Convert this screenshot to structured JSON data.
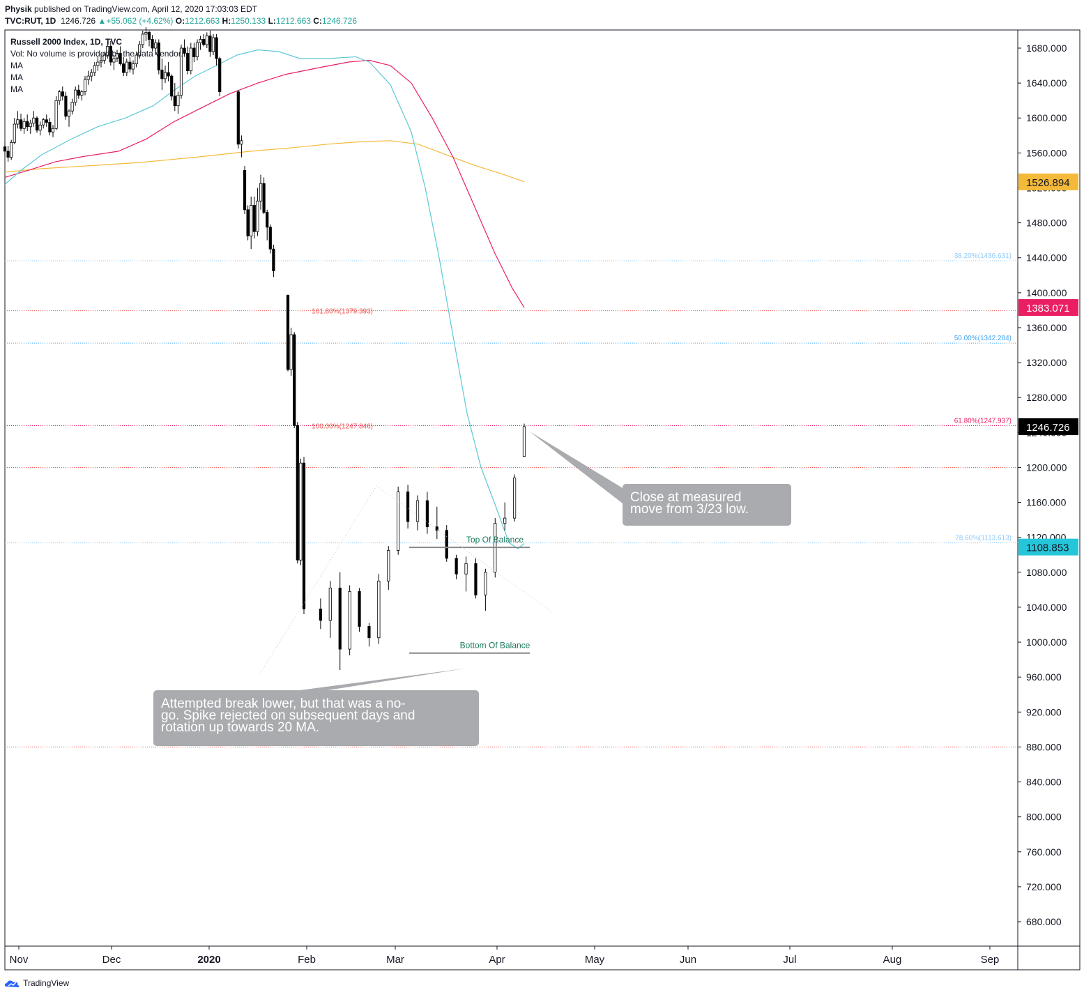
{
  "header": {
    "author": "Physik",
    "published_text": "published on TradingView.com, April 12, 2020 17:03:03 EDT",
    "symbol_line": "TVC:RUT, 1D",
    "last": "1246.726",
    "change_arrow": "▲",
    "change": "+55.062 (+4.62%)",
    "o_label": "O:",
    "o_val": "1212.663",
    "h_label": "H:",
    "h_val": "1250.133",
    "l_label": "L:",
    "l_val": "1212.663",
    "c_label": "C:",
    "c_val": "1246.726"
  },
  "legend": {
    "title": "Russell 2000 Index, 1D, TVC",
    "vol": "Vol: No volume is provided by the data vendor.",
    "ma1": "MA",
    "ma2": "MA",
    "ma3": "MA"
  },
  "branding": {
    "label": "TradingView",
    "icon": "tradingview-logo-icon"
  },
  "colors": {
    "ma20": "#5bc8d6",
    "ma50": "#e91e63",
    "ma200": "#f5b93a",
    "fib_red": "#ef5350",
    "fib_blue": "#42a5f5",
    "fib_lightblue": "#90caf9",
    "candle_down": "#000000",
    "candle_up": "#ffffff",
    "callout_bg": "#a9abae",
    "balance_text": "#1b7a5e"
  },
  "chart_data": {
    "type": "candlestick",
    "title": "Russell 2000 Index, 1D, TVC",
    "ylim": [
      652,
      1704
    ],
    "y_ticks": [
      "680.000",
      "720.000",
      "760.000",
      "800.000",
      "840.000",
      "880.000",
      "920.000",
      "960.000",
      "1000.000",
      "1040.000",
      "1080.000",
      "1120.000",
      "1160.000",
      "1200.000",
      "1240.000",
      "1280.000",
      "1320.000",
      "1360.000",
      "1400.000",
      "1440.000",
      "1480.000",
      "1520.000",
      "1560.000",
      "1600.000",
      "1640.000",
      "1680.000"
    ],
    "x_labels": [
      {
        "label": "Nov",
        "bold": false
      },
      {
        "label": "Dec",
        "bold": false
      },
      {
        "label": "2020",
        "bold": true
      },
      {
        "label": "Feb",
        "bold": false
      },
      {
        "label": "Mar",
        "bold": false
      },
      {
        "label": "Apr",
        "bold": false
      },
      {
        "label": "May",
        "bold": false
      },
      {
        "label": "Jun",
        "bold": false
      },
      {
        "label": "Jul",
        "bold": false
      },
      {
        "label": "Aug",
        "bold": false
      },
      {
        "label": "Sep",
        "bold": false
      }
    ],
    "price_badges": [
      {
        "label": "1526.894",
        "value": 1526.894,
        "bg": "#f5b93a",
        "fg": "#131722"
      },
      {
        "label": "1383.071",
        "value": 1383.071,
        "bg": "#e91e63",
        "fg": "#ffffff"
      },
      {
        "label": "1246.726",
        "value": 1246.726,
        "bg": "#000000",
        "fg": "#ffffff"
      },
      {
        "label": "1108.853",
        "value": 1108.853,
        "bg": "#26c6da",
        "fg": "#131722"
      }
    ],
    "fib_levels": [
      {
        "label": "38.20%(1436.631)",
        "value": 1436.631,
        "side": "right",
        "color": "#90caf9"
      },
      {
        "label": "161.80%(1379.393)",
        "value": 1379.393,
        "side": "mid",
        "color": "#ef5350"
      },
      {
        "label": "50.00%(1342.284)",
        "value": 1342.284,
        "side": "right",
        "color": "#42a5f5"
      },
      {
        "label": "100.00%(1247.846)",
        "value": 1247.846,
        "side": "mid",
        "color": "#ef5350"
      },
      {
        "label": "61.80%(1247.937)",
        "value": 1247.937,
        "side": "right",
        "color": "#e91e63"
      },
      {
        "label": "",
        "value": 1200.0,
        "side": "none",
        "color": "#ef5350"
      },
      {
        "label": "78.60%(1113.613)",
        "value": 1113.613,
        "side": "right",
        "color": "#90caf9"
      },
      {
        "label": "",
        "value": 880.0,
        "side": "none",
        "color": "#ef5350"
      }
    ],
    "balance_lines": [
      {
        "label": "Top Of Balance",
        "value": 1108.5,
        "i0": 118,
        "i1": 143
      },
      {
        "label": "Bottom Of Balance",
        "value": 987.5,
        "i0": 118,
        "i1": 143
      }
    ],
    "callouts": [
      {
        "text": [
          "Close at measured",
          "move from 3/23 low."
        ],
        "pointer": 1241
      },
      {
        "text": [
          "Attempted break lower, but that was a no-",
          "go. Spike rejected on subsequent days and",
          "rotation up towards 20 MA."
        ],
        "pointer": 970
      }
    ],
    "candles": [
      [
        1567,
        1572,
        1556,
        1562
      ],
      [
        1562,
        1568,
        1550,
        1555
      ],
      [
        1555,
        1575,
        1552,
        1572
      ],
      [
        1572,
        1600,
        1570,
        1593
      ],
      [
        1593,
        1608,
        1588,
        1598
      ],
      [
        1598,
        1605,
        1585,
        1588
      ],
      [
        1588,
        1600,
        1582,
        1596
      ],
      [
        1596,
        1604,
        1585,
        1590
      ],
      [
        1590,
        1598,
        1582,
        1594
      ],
      [
        1594,
        1608,
        1590,
        1600
      ],
      [
        1600,
        1602,
        1583,
        1586
      ],
      [
        1586,
        1596,
        1580,
        1592
      ],
      [
        1592,
        1600,
        1588,
        1598
      ],
      [
        1598,
        1604,
        1590,
        1595
      ],
      [
        1595,
        1600,
        1580,
        1584
      ],
      [
        1584,
        1592,
        1578,
        1588
      ],
      [
        1588,
        1625,
        1586,
        1620
      ],
      [
        1620,
        1632,
        1615,
        1630
      ],
      [
        1630,
        1636,
        1620,
        1625
      ],
      [
        1625,
        1630,
        1598,
        1602
      ],
      [
        1602,
        1610,
        1590,
        1608
      ],
      [
        1608,
        1622,
        1604,
        1618
      ],
      [
        1618,
        1636,
        1614,
        1632
      ],
      [
        1632,
        1638,
        1622,
        1626
      ],
      [
        1626,
        1632,
        1620,
        1630
      ],
      [
        1630,
        1648,
        1626,
        1644
      ],
      [
        1644,
        1654,
        1638,
        1648
      ],
      [
        1648,
        1656,
        1642,
        1652
      ],
      [
        1652,
        1664,
        1648,
        1660
      ],
      [
        1660,
        1670,
        1654,
        1664
      ],
      [
        1664,
        1672,
        1658,
        1666
      ],
      [
        1666,
        1676,
        1662,
        1672
      ],
      [
        1672,
        1686,
        1668,
        1682
      ],
      [
        1682,
        1688,
        1660,
        1664
      ],
      [
        1664,
        1672,
        1655,
        1668
      ],
      [
        1668,
        1678,
        1664,
        1674
      ],
      [
        1674,
        1682,
        1660,
        1662
      ],
      [
        1662,
        1670,
        1648,
        1652
      ],
      [
        1652,
        1668,
        1648,
        1664
      ],
      [
        1664,
        1670,
        1652,
        1656
      ],
      [
        1656,
        1666,
        1650,
        1662
      ],
      [
        1662,
        1676,
        1658,
        1672
      ],
      [
        1672,
        1688,
        1668,
        1684
      ],
      [
        1684,
        1700,
        1680,
        1696
      ],
      [
        1696,
        1704,
        1688,
        1698
      ],
      [
        1698,
        1700,
        1682,
        1690
      ],
      [
        1690,
        1695,
        1676,
        1680
      ],
      [
        1680,
        1690,
        1672,
        1686
      ],
      [
        1686,
        1690,
        1650,
        1655
      ],
      [
        1655,
        1668,
        1632,
        1645
      ],
      [
        1645,
        1660,
        1640,
        1652
      ],
      [
        1652,
        1664,
        1642,
        1648
      ],
      [
        1648,
        1650,
        1620,
        1625
      ],
      [
        1625,
        1640,
        1608,
        1614
      ],
      [
        1614,
        1630,
        1605,
        1626
      ],
      [
        1626,
        1684,
        1622,
        1680
      ],
      [
        1680,
        1690,
        1670,
        1674
      ],
      [
        1674,
        1682,
        1650,
        1654
      ],
      [
        1654,
        1686,
        1650,
        1680
      ],
      [
        1680,
        1686,
        1664,
        1670
      ],
      [
        1670,
        1690,
        1666,
        1686
      ],
      [
        1686,
        1694,
        1678,
        1690
      ],
      [
        1690,
        1696,
        1682,
        1684
      ],
      [
        1684,
        1698,
        1680,
        1694
      ],
      [
        1694,
        1700,
        1670,
        1676
      ],
      [
        1676,
        1696,
        1672,
        1692
      ],
      [
        1692,
        1696,
        1660,
        1668
      ],
      [
        1668,
        1670,
        1625,
        1630
      ],
      [
        1630,
        1632,
        1565,
        1570
      ],
      [
        1570,
        1580,
        1555,
        1574
      ],
      [
        1540,
        1545,
        1490,
        1495
      ],
      [
        1495,
        1500,
        1460,
        1465
      ],
      [
        1465,
        1510,
        1450,
        1500
      ],
      [
        1500,
        1510,
        1462,
        1470
      ],
      [
        1470,
        1520,
        1465,
        1505
      ],
      [
        1505,
        1535,
        1495,
        1525
      ],
      [
        1525,
        1532,
        1490,
        1492
      ],
      [
        1492,
        1495,
        1460,
        1475
      ],
      [
        1475,
        1478,
        1445,
        1450
      ],
      [
        1450,
        1455,
        1418,
        1425
      ],
      [
        1397,
        1398,
        1310,
        1312
      ],
      [
        1312,
        1360,
        1305,
        1352
      ],
      [
        1352,
        1355,
        1245,
        1248
      ],
      [
        1248,
        1252,
        1090,
        1094
      ],
      [
        1094,
        1210,
        1088,
        1205
      ],
      [
        1205,
        1212,
        1032,
        1038
      ],
      [
        1038,
        1050,
        1015,
        1025
      ],
      [
        1025,
        1070,
        1005,
        1062
      ],
      [
        1062,
        1080,
        968,
        992
      ],
      [
        992,
        1065,
        985,
        1058
      ],
      [
        1058,
        1062,
        1012,
        1018
      ],
      [
        1018,
        1022,
        995,
        1005
      ],
      [
        1005,
        1078,
        998,
        1070
      ],
      [
        1070,
        1110,
        1060,
        1105
      ],
      [
        1105,
        1178,
        1100,
        1172
      ],
      [
        1172,
        1180,
        1130,
        1138
      ],
      [
        1138,
        1168,
        1128,
        1162
      ],
      [
        1162,
        1172,
        1124,
        1132
      ],
      [
        1132,
        1155,
        1118,
        1128
      ],
      [
        1128,
        1134,
        1092,
        1096
      ],
      [
        1096,
        1100,
        1072,
        1078
      ],
      [
        1078,
        1098,
        1058,
        1090
      ],
      [
        1090,
        1096,
        1050,
        1054
      ],
      [
        1054,
        1084,
        1036,
        1080
      ],
      [
        1080,
        1142,
        1074,
        1136
      ],
      [
        1136,
        1160,
        1128,
        1142
      ],
      [
        1142,
        1192,
        1138,
        1188
      ],
      [
        1212.663,
        1250.133,
        1212.663,
        1246.726
      ]
    ],
    "candle_x_start": 7,
    "candle_x_step": 4.6,
    "candle_x_breaks": [
      [
        68,
        22
      ],
      [
        80,
        16
      ],
      [
        86,
        10
      ]
    ],
    "ma200": [
      [
        7,
        1538
      ],
      [
        60,
        1542
      ],
      [
        120,
        1545
      ],
      [
        200,
        1549
      ],
      [
        280,
        1555
      ],
      [
        360,
        1562
      ],
      [
        420,
        1566
      ],
      [
        470,
        1570
      ],
      [
        520,
        1573
      ],
      [
        560,
        1574
      ],
      [
        600,
        1570
      ],
      [
        640,
        1558
      ],
      [
        680,
        1546
      ],
      [
        720,
        1536
      ],
      [
        752,
        1527
      ]
    ],
    "ma50": [
      [
        7,
        1532
      ],
      [
        40,
        1540
      ],
      [
        80,
        1550
      ],
      [
        120,
        1556
      ],
      [
        170,
        1562
      ],
      [
        210,
        1576
      ],
      [
        250,
        1596
      ],
      [
        290,
        1612
      ],
      [
        330,
        1628
      ],
      [
        370,
        1640
      ],
      [
        410,
        1650
      ],
      [
        460,
        1658
      ],
      [
        500,
        1664
      ],
      [
        530,
        1666
      ],
      [
        560,
        1660
      ],
      [
        590,
        1640
      ],
      [
        620,
        1600
      ],
      [
        650,
        1555
      ],
      [
        680,
        1500
      ],
      [
        710,
        1445
      ],
      [
        735,
        1405
      ],
      [
        752,
        1383
      ]
    ],
    "ma20": [
      [
        7,
        1524
      ],
      [
        30,
        1540
      ],
      [
        60,
        1558
      ],
      [
        100,
        1575
      ],
      [
        140,
        1590
      ],
      [
        180,
        1600
      ],
      [
        220,
        1614
      ],
      [
        250,
        1632
      ],
      [
        280,
        1648
      ],
      [
        310,
        1660
      ],
      [
        340,
        1672
      ],
      [
        370,
        1678
      ],
      [
        400,
        1676
      ],
      [
        430,
        1668
      ],
      [
        470,
        1668
      ],
      [
        510,
        1670
      ],
      [
        530,
        1664
      ],
      [
        560,
        1638
      ],
      [
        590,
        1584
      ],
      [
        610,
        1520
      ],
      [
        630,
        1440
      ],
      [
        650,
        1350
      ],
      [
        670,
        1262
      ],
      [
        690,
        1200
      ],
      [
        710,
        1158
      ],
      [
        730,
        1114
      ],
      [
        743,
        1107
      ],
      [
        752,
        1113
      ]
    ]
  }
}
